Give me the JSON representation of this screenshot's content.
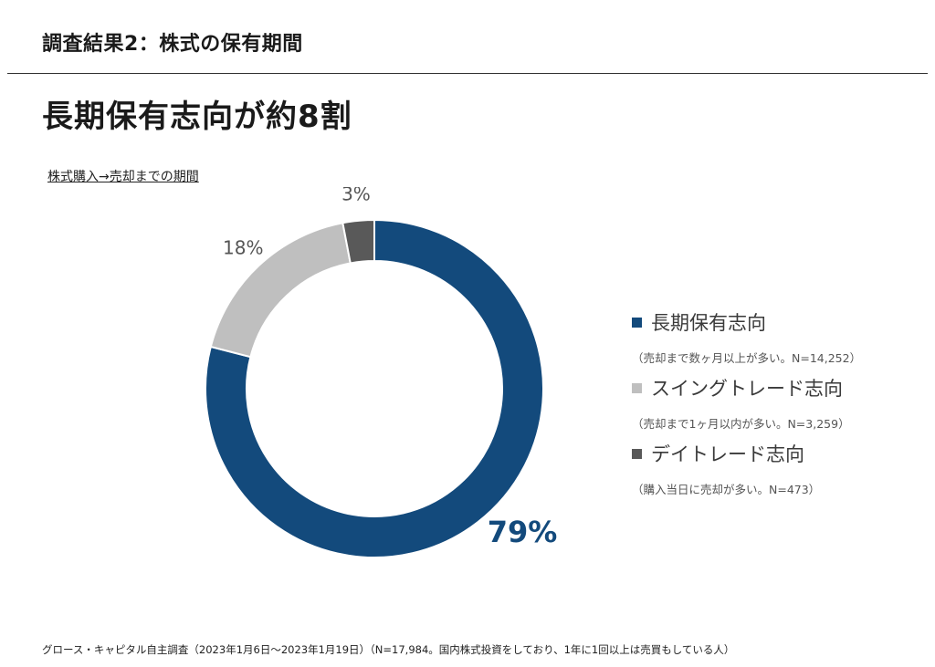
{
  "header": {
    "section_title": "調査結果2：株式の保有期間",
    "headline": "長期保有志向が約8割"
  },
  "chart_data": {
    "type": "pie",
    "subtitle": "株式購入→売却までの期間",
    "series": [
      {
        "name": "長期保有志向",
        "value": 79,
        "label": "79%",
        "note": "（売却まで数ヶ月以上が多い。N=14,252）",
        "color": "#134A7C"
      },
      {
        "name": "スイングトレード志向",
        "value": 18,
        "label": "18%",
        "note": "（売却まで1ヶ月以内が多い。N=3,259）",
        "color": "#BFBFBF"
      },
      {
        "name": "デイトレード志向",
        "value": 3,
        "label": "3%",
        "note": "（購入当日に売却が多い。N=473）",
        "color": "#595959"
      }
    ],
    "legend_position": "right",
    "style": "donut"
  },
  "footnote": "グロース・キャピタル自主調査（2023年1月6日〜2023年1月19日）（N=17,984。国内株式投資をしており、1年に1回以上は売買もしている人）"
}
